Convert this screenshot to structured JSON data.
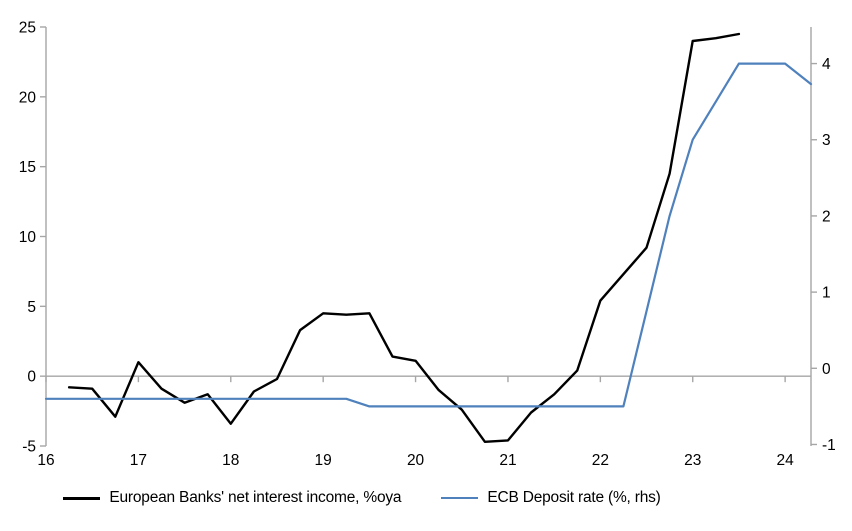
{
  "legend": {
    "items": [
      {
        "label": "European Banks' net interest income, %oya",
        "color": "#000000"
      },
      {
        "label": "ECB Deposit rate (%, rhs)",
        "color": "#4F81BD"
      }
    ]
  },
  "chart_data": {
    "type": "line",
    "title": "",
    "x_axis": {
      "min": 16,
      "max": 24.28,
      "ticks": [
        16,
        17,
        18,
        19,
        20,
        21,
        22,
        23,
        24
      ]
    },
    "left_axis": {
      "min": -5,
      "max": 25,
      "ticks": [
        25,
        20,
        15,
        10,
        5,
        0,
        -5
      ]
    },
    "right_axis": {
      "min": -1.02,
      "max": 4.48,
      "ticks": [
        4,
        3,
        2,
        1,
        0,
        -1
      ]
    },
    "grid": "horizontal-zero-line-only",
    "legend_position": "bottom-center",
    "colors": {
      "axis": "#A6A6A6",
      "zero_line": "#A6A6A6",
      "text": "#000000"
    },
    "series": [
      {
        "name": "European Banks' net interest income, %oya",
        "axis": "left",
        "color": "#000000",
        "stroke_width": 2.4,
        "points": [
          [
            16.25,
            -0.8
          ],
          [
            16.5,
            -0.9
          ],
          [
            16.75,
            -2.9
          ],
          [
            17.0,
            1.0
          ],
          [
            17.25,
            -0.9
          ],
          [
            17.5,
            -1.9
          ],
          [
            17.75,
            -1.3
          ],
          [
            18.0,
            -3.4
          ],
          [
            18.25,
            -1.1
          ],
          [
            18.5,
            -0.2
          ],
          [
            18.75,
            3.3
          ],
          [
            19.0,
            4.5
          ],
          [
            19.25,
            4.4
          ],
          [
            19.5,
            4.5
          ],
          [
            19.75,
            1.4
          ],
          [
            20.0,
            1.1
          ],
          [
            20.25,
            -1.0
          ],
          [
            20.5,
            -2.4
          ],
          [
            20.75,
            -4.7
          ],
          [
            21.0,
            -4.6
          ],
          [
            21.25,
            -2.6
          ],
          [
            21.5,
            -1.3
          ],
          [
            21.75,
            0.4
          ],
          [
            22.0,
            5.4
          ],
          [
            22.25,
            7.3
          ],
          [
            22.5,
            9.2
          ],
          [
            22.75,
            14.5
          ],
          [
            23.0,
            24.0
          ],
          [
            23.25,
            24.2
          ],
          [
            23.5,
            24.5
          ]
        ]
      },
      {
        "name": "ECB Deposit rate (%, rhs)",
        "axis": "right",
        "color": "#4F81BD",
        "stroke_width": 2.2,
        "points": [
          [
            16.0,
            -0.4
          ],
          [
            19.25,
            -0.4
          ],
          [
            19.5,
            -0.5
          ],
          [
            22.25,
            -0.5
          ],
          [
            22.5,
            0.75
          ],
          [
            22.75,
            2.0
          ],
          [
            23.0,
            3.0
          ],
          [
            23.25,
            3.5
          ],
          [
            23.5,
            4.0
          ],
          [
            24.0,
            4.0
          ],
          [
            24.28,
            3.73
          ]
        ]
      }
    ]
  }
}
